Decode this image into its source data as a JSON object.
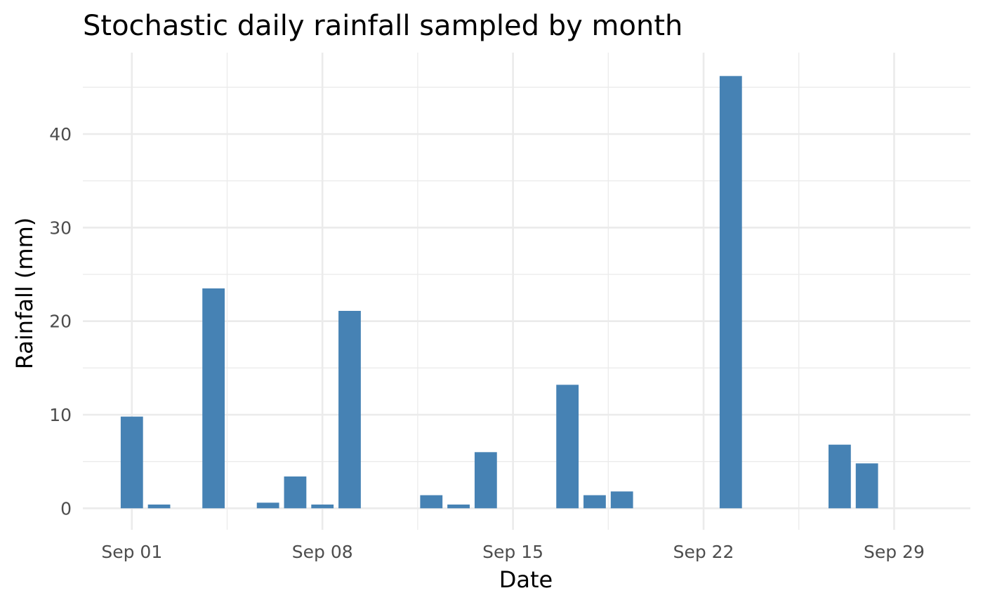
{
  "chart_data": {
    "type": "bar",
    "title": "Stochastic daily rainfall sampled by month",
    "xlabel": "Date",
    "ylabel": "Rainfall (mm)",
    "x_ticks": [
      {
        "label": "Sep 01",
        "day": 1
      },
      {
        "label": "Sep 08",
        "day": 8
      },
      {
        "label": "Sep 15",
        "day": 15
      },
      {
        "label": "Sep 22",
        "day": 22
      },
      {
        "label": "Sep 29",
        "day": 29
      }
    ],
    "y_ticks": [
      0,
      10,
      20,
      30,
      40
    ],
    "ylim": [
      -2.3,
      48.7
    ],
    "xlim_days": [
      -0.8,
      31.8
    ],
    "bar_color": "#4682b4",
    "grid": true,
    "dates": [
      "2023-09-01",
      "2023-09-02",
      "2023-09-03",
      "2023-09-04",
      "2023-09-05",
      "2023-09-06",
      "2023-09-07",
      "2023-09-08",
      "2023-09-09",
      "2023-09-10",
      "2023-09-11",
      "2023-09-12",
      "2023-09-13",
      "2023-09-14",
      "2023-09-15",
      "2023-09-16",
      "2023-09-17",
      "2023-09-18",
      "2023-09-19",
      "2023-09-20",
      "2023-09-21",
      "2023-09-22",
      "2023-09-23",
      "2023-09-24",
      "2023-09-25",
      "2023-09-26",
      "2023-09-27",
      "2023-09-28",
      "2023-09-29",
      "2023-09-30"
    ],
    "values": [
      9.8,
      0.4,
      0,
      23.5,
      0,
      0.6,
      3.4,
      0.4,
      21.1,
      0,
      0,
      1.4,
      0.4,
      6.0,
      0,
      0,
      13.2,
      1.4,
      1.8,
      0,
      0,
      0,
      46.2,
      0,
      0,
      0,
      6.8,
      4.8,
      0,
      0
    ]
  }
}
